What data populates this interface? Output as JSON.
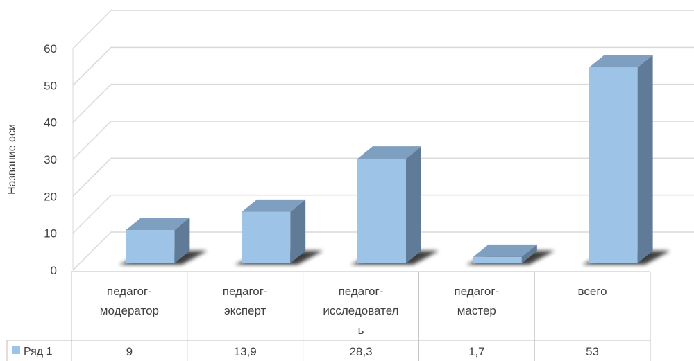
{
  "chart_data": {
    "type": "bar",
    "ylabel": "Название оси",
    "ylim": [
      0,
      60
    ],
    "yticks": [
      0,
      10,
      20,
      30,
      40,
      50,
      60
    ],
    "grid": true,
    "categories": [
      [
        "педагог-",
        "модератор"
      ],
      [
        "педагог-",
        "эксперт"
      ],
      [
        "педагог-",
        "исследовател",
        "ь"
      ],
      [
        "педагог-",
        "мастер"
      ],
      [
        "всего"
      ]
    ],
    "series": [
      {
        "name": "Ряд 1",
        "values": [
          9,
          13.9,
          28.3,
          1.7,
          53
        ],
        "value_labels": [
          "9",
          "13,9",
          "28,3",
          "1,7",
          "53"
        ]
      }
    ],
    "colors": {
      "bar_front": "#9dc3e6",
      "bar_side": "#5f7b97",
      "bar_top": "#7f9fc1",
      "shadow": "#1a1a1a",
      "grid": "#d9d9d9",
      "legend_key": "#9dc3e6"
    }
  }
}
